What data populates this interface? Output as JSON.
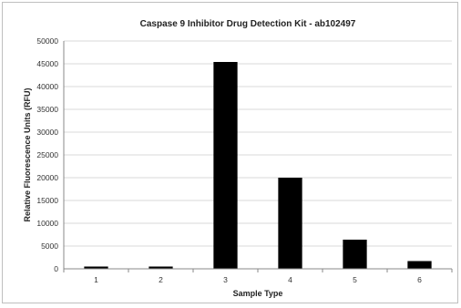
{
  "chart_data": {
    "type": "bar",
    "title": "Caspase 9 Inhibitor Drug Detection Kit - ab102497",
    "xlabel": "Sample Type",
    "ylabel": "Relative Fluorescence Units (RFU)",
    "categories": [
      "1",
      "2",
      "3",
      "4",
      "5",
      "6"
    ],
    "values": [
      500,
      500,
      45400,
      20000,
      6400,
      1700
    ],
    "ylim": [
      0,
      50000
    ],
    "yticks": [
      0,
      5000,
      10000,
      15000,
      20000,
      25000,
      30000,
      35000,
      40000,
      45000,
      50000
    ],
    "ytick_labels": [
      "0",
      "5000",
      "10000",
      "15000",
      "20000",
      "25000",
      "30000",
      "35000",
      "40000",
      "45000",
      "50000"
    ],
    "grid": true,
    "legend": "none",
    "bar_color": "#000000",
    "grid_color": "#d9d9d9"
  }
}
